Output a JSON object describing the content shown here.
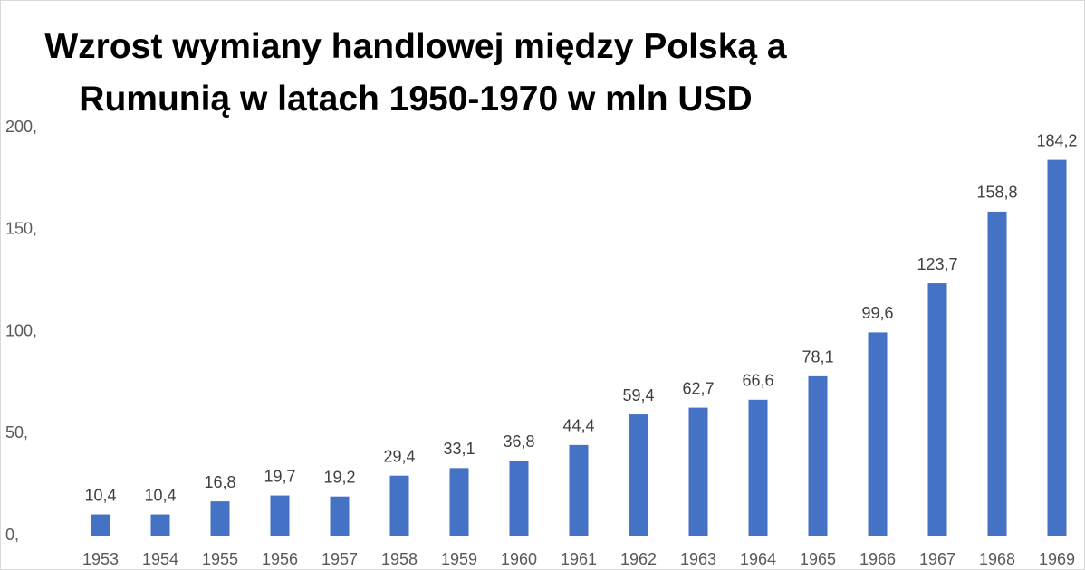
{
  "chart_data": {
    "type": "bar",
    "title": "Wzrost wymiany handlowej między Polską a Rumunią w latach 1950-1970 w mln USD",
    "categories": [
      "1953",
      "1954",
      "1955",
      "1956",
      "1957",
      "1958",
      "1959",
      "1960",
      "1961",
      "1962",
      "1963",
      "1964",
      "1965",
      "1966",
      "1967",
      "1968",
      "1969"
    ],
    "values": [
      10.4,
      10.4,
      16.8,
      19.7,
      19.2,
      29.4,
      33.1,
      36.8,
      44.4,
      59.4,
      62.7,
      66.6,
      78.1,
      99.6,
      123.7,
      158.8,
      184.2
    ],
    "value_labels": [
      "10,4",
      "10,4",
      "16,8",
      "19,7",
      "19,2",
      "29,4",
      "33,1",
      "36,8",
      "44,4",
      "59,4",
      "62,7",
      "66,6",
      "78,1",
      "99,6",
      "123,7",
      "158,8",
      "184,2"
    ],
    "color": "#4472c4",
    "ylim": [
      0,
      200
    ],
    "yticks": [
      {
        "value": 0,
        "label": "0,"
      },
      {
        "value": 50,
        "label": "50,"
      },
      {
        "value": 100,
        "label": "100,"
      },
      {
        "value": 150,
        "label": "150,"
      },
      {
        "value": 200,
        "label": "200,"
      }
    ],
    "grid": false
  }
}
